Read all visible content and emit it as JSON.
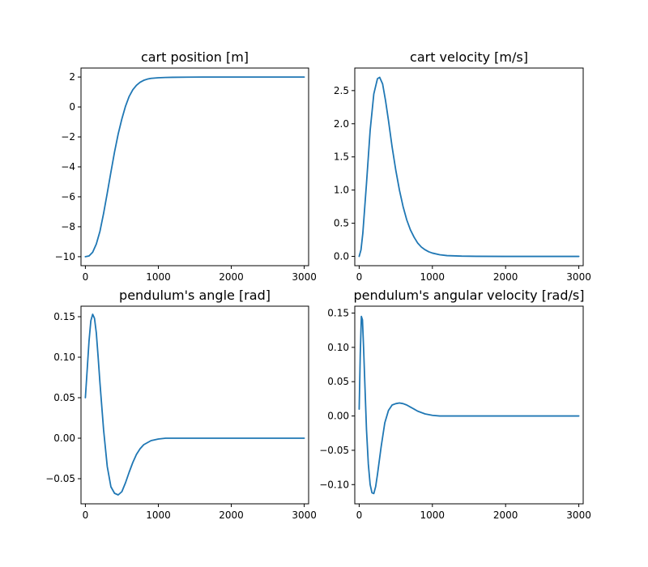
{
  "colors": {
    "line": "#1f77b4"
  },
  "chart_data": [
    {
      "type": "line",
      "title": "cart position [m]",
      "xlim": [
        -60,
        3060
      ],
      "ylim": [
        -10.6,
        2.6
      ],
      "xticks": [
        0,
        1000,
        2000,
        3000
      ],
      "xtick_labels": [
        "0",
        "1000",
        "2000",
        "3000"
      ],
      "yticks": [
        2,
        0,
        -2,
        -4,
        -6,
        -8,
        -10
      ],
      "ytick_labels": [
        "2",
        "0",
        "−2",
        "−4",
        "−6",
        "−8",
        "−10"
      ],
      "series": [
        {
          "x": [
            0,
            50,
            100,
            150,
            200,
            250,
            300,
            350,
            400,
            450,
            500,
            550,
            600,
            650,
            700,
            750,
            800,
            850,
            900,
            1000,
            1100,
            1200,
            1400,
            1600,
            2000,
            2500,
            3000
          ],
          "y": [
            -10.0,
            -9.95,
            -9.7,
            -9.15,
            -8.3,
            -7.1,
            -5.75,
            -4.35,
            -3.0,
            -1.8,
            -0.8,
            0.05,
            0.7,
            1.15,
            1.45,
            1.65,
            1.78,
            1.86,
            1.91,
            1.95,
            1.97,
            1.98,
            1.99,
            2.0,
            2.0,
            2.0,
            2.0
          ]
        }
      ]
    },
    {
      "type": "line",
      "title": "cart velocity [m/s]",
      "xlim": [
        -60,
        3060
      ],
      "ylim": [
        -0.14,
        2.84
      ],
      "xticks": [
        0,
        1000,
        2000,
        3000
      ],
      "xtick_labels": [
        "0",
        "1000",
        "2000",
        "3000"
      ],
      "yticks": [
        0.0,
        0.5,
        1.0,
        1.5,
        2.0,
        2.5
      ],
      "ytick_labels": [
        "0.0",
        "0.5",
        "1.0",
        "1.5",
        "2.0",
        "2.5"
      ],
      "series": [
        {
          "x": [
            0,
            25,
            50,
            100,
            150,
            200,
            250,
            280,
            320,
            360,
            400,
            450,
            500,
            550,
            600,
            650,
            700,
            750,
            800,
            850,
            900,
            950,
            1000,
            1100,
            1200,
            1400,
            1600,
            2000,
            3000
          ],
          "y": [
            0.0,
            0.1,
            0.35,
            1.1,
            1.9,
            2.45,
            2.68,
            2.7,
            2.6,
            2.35,
            2.05,
            1.65,
            1.3,
            1.0,
            0.75,
            0.55,
            0.4,
            0.29,
            0.2,
            0.14,
            0.1,
            0.07,
            0.05,
            0.025,
            0.012,
            0.004,
            0.001,
            0.0,
            0.0
          ]
        }
      ]
    },
    {
      "type": "line",
      "title": "pendulum's angle [rad]",
      "xlim": [
        -60,
        3060
      ],
      "ylim": [
        -0.081,
        0.163
      ],
      "xticks": [
        0,
        1000,
        2000,
        3000
      ],
      "xtick_labels": [
        "0",
        "1000",
        "2000",
        "3000"
      ],
      "yticks": [
        0.15,
        0.1,
        0.05,
        0.0,
        -0.05
      ],
      "ytick_labels": [
        "0.15",
        "0.10",
        "0.05",
        "0.00",
        "−0.05"
      ],
      "series": [
        {
          "x": [
            0,
            25,
            50,
            75,
            100,
            125,
            150,
            175,
            200,
            250,
            300,
            350,
            400,
            450,
            500,
            550,
            600,
            650,
            700,
            750,
            800,
            900,
            1000,
            1100,
            1200,
            1400,
            1600,
            2000,
            3000
          ],
          "y": [
            0.05,
            0.085,
            0.12,
            0.145,
            0.153,
            0.148,
            0.13,
            0.1,
            0.068,
            0.01,
            -0.035,
            -0.06,
            -0.068,
            -0.07,
            -0.066,
            -0.055,
            -0.042,
            -0.03,
            -0.02,
            -0.013,
            -0.008,
            -0.003,
            -0.001,
            0.0,
            0.0,
            0.0,
            0.0,
            0.0,
            0.0
          ]
        }
      ]
    },
    {
      "type": "line",
      "title": "pendulum's angular velocity [rad/s]",
      "xlim": [
        -60,
        3060
      ],
      "ylim": [
        -0.128,
        0.16
      ],
      "xticks": [
        0,
        1000,
        2000,
        3000
      ],
      "xtick_labels": [
        "0",
        "1000",
        "2000",
        "3000"
      ],
      "yticks": [
        0.15,
        0.1,
        0.05,
        0.0,
        -0.05,
        -0.1
      ],
      "ytick_labels": [
        "0.15",
        "0.10",
        "0.05",
        "0.00",
        "−0.05",
        "−0.10"
      ],
      "series": [
        {
          "x": [
            0,
            15,
            30,
            45,
            60,
            80,
            100,
            125,
            150,
            175,
            200,
            225,
            250,
            300,
            350,
            400,
            450,
            500,
            550,
            600,
            650,
            700,
            750,
            800,
            900,
            1000,
            1100,
            1200,
            1400,
            1600,
            2000,
            3000
          ],
          "y": [
            0.01,
            0.09,
            0.145,
            0.14,
            0.1,
            0.04,
            -0.02,
            -0.07,
            -0.1,
            -0.112,
            -0.113,
            -0.103,
            -0.085,
            -0.045,
            -0.01,
            0.008,
            0.016,
            0.018,
            0.019,
            0.018,
            0.016,
            0.013,
            0.01,
            0.007,
            0.003,
            0.001,
            0.0,
            0.0,
            0.0,
            0.0,
            0.0,
            0.0
          ]
        }
      ]
    }
  ]
}
